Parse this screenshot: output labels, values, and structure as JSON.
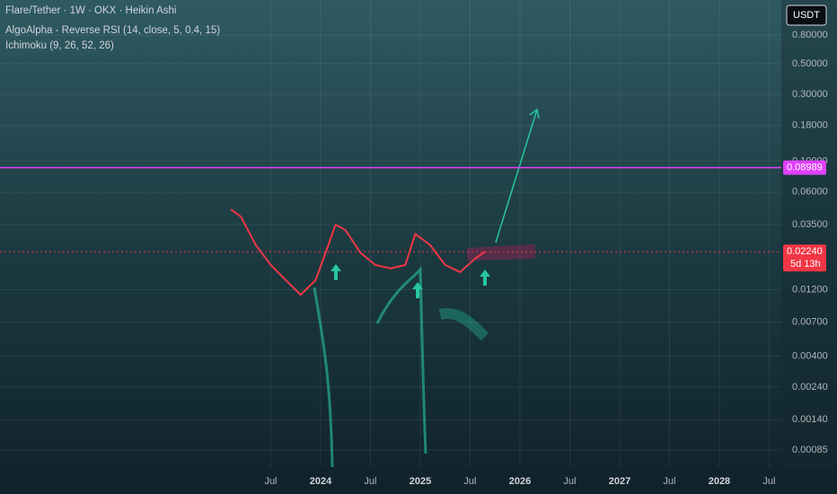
{
  "chart_data": {
    "type": "line",
    "title": "Flare/Tether · 1W · OKX · Heikin Ashi",
    "indicators": [
      "AlgoAlpha - Reverse RSI (14, close, 5, 0.4, 15)",
      "Ichimoku (9, 26, 52, 26)"
    ],
    "currency": "USDT",
    "log_scale": true,
    "grid": true,
    "color": "#f23645",
    "x": [
      2023.1,
      2023.2,
      2023.35,
      2023.5,
      2023.65,
      2023.8,
      2023.95,
      2024.05,
      2024.15,
      2024.25,
      2024.4,
      2024.55,
      2024.7,
      2024.85,
      2024.95,
      2025.1,
      2025.25,
      2025.4,
      2025.55,
      2025.65
    ],
    "values": [
      0.045,
      0.04,
      0.025,
      0.018,
      0.014,
      0.011,
      0.014,
      0.022,
      0.035,
      0.032,
      0.022,
      0.018,
      0.017,
      0.018,
      0.03,
      0.025,
      0.018,
      0.016,
      0.02,
      0.0224
    ],
    "xlim": [
      2020.784,
      2028.622
    ],
    "xticks": [
      {
        "value": 2023.5,
        "label": "Jul"
      },
      2024,
      {
        "value": 2024.5,
        "label": "Jul"
      },
      2025,
      {
        "value": 2025.5,
        "label": "Jul"
      },
      2026,
      {
        "value": 2026.5,
        "label": "Jul"
      },
      2027,
      {
        "value": 2027.5,
        "label": "Jul"
      },
      2028,
      {
        "value": 2028.5,
        "label": "Jul"
      }
    ],
    "ylim": [
      0.00064,
      1.43
    ],
    "yticks": [
      {
        "value": 0.8,
        "label": "0.80000"
      },
      {
        "value": 0.5,
        "label": "0.50000"
      },
      {
        "value": 0.3,
        "label": "0.30000"
      },
      {
        "value": 0.18,
        "label": "0.18000"
      },
      {
        "value": 0.1,
        "label": "0.10000"
      },
      {
        "value": 0.06,
        "label": "0.06000"
      },
      {
        "value": 0.035,
        "label": "0.03500"
      },
      {
        "value": 0.012,
        "label": "0.01200"
      },
      {
        "value": 0.007,
        "label": "0.00700"
      },
      {
        "value": 0.004,
        "label": "0.00400"
      },
      {
        "value": 0.0024,
        "label": "0.00240"
      },
      {
        "value": 0.0014,
        "label": "0.00140"
      },
      {
        "value": 0.00085,
        "label": "0.00085"
      }
    ],
    "price_lines": [
      {
        "value": 0.08989,
        "label": "0.08989",
        "color": "#e040fb"
      },
      {
        "value": 0.0224,
        "label": "0.02240",
        "color": "#f23645"
      }
    ],
    "countdown": "5d 13h"
  }
}
